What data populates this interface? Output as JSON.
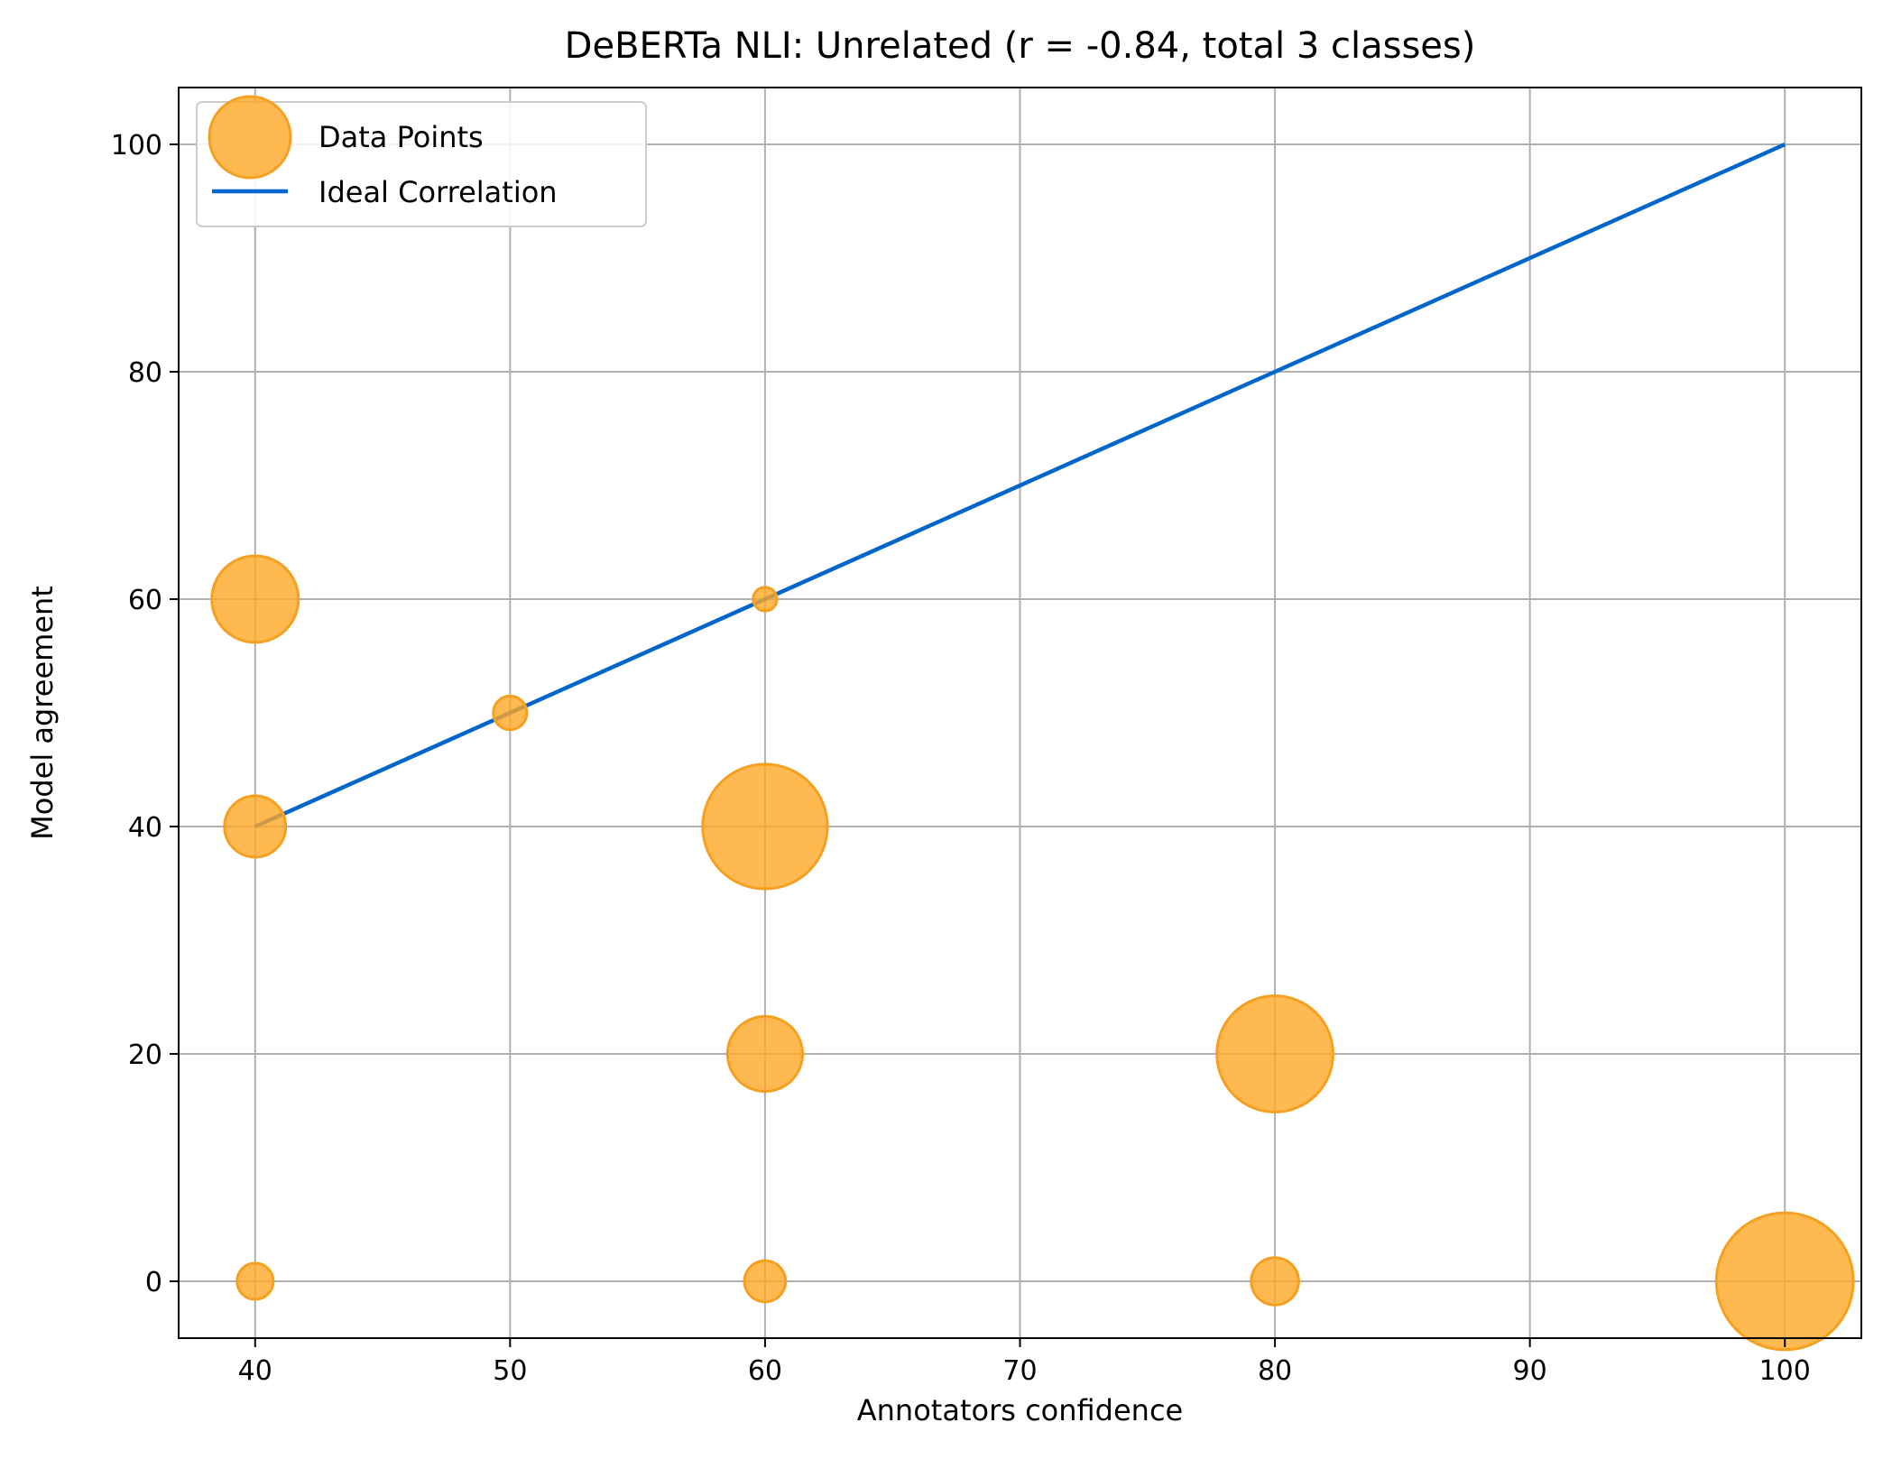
{
  "chart_data": {
    "type": "scatter",
    "title": "DeBERTa NLI: Unrelated (r = -0.84, total 3 classes)",
    "xlabel": "Annotators confidence",
    "ylabel": "Model agreement",
    "xlim": [
      37,
      103
    ],
    "ylim": [
      -5,
      105
    ],
    "xticks": [
      40,
      50,
      60,
      70,
      80,
      90,
      100
    ],
    "yticks": [
      0,
      20,
      40,
      60,
      80,
      100
    ],
    "xtick_labels": [
      "40",
      "50",
      "60",
      "70",
      "80",
      "90",
      "100"
    ],
    "ytick_labels": [
      "0",
      "20",
      "40",
      "60",
      "80",
      "100"
    ],
    "grid": true,
    "legend_position": "top-left",
    "colors": {
      "points": "#ffa726",
      "points_edge": "#f5a020",
      "line": "#0066cc",
      "grid": "#b0b0b0"
    },
    "series": [
      {
        "name": "Data Points",
        "kind": "scatter",
        "points": [
          {
            "x": 40,
            "y": 60,
            "size": 4
          },
          {
            "x": 40,
            "y": 40,
            "size": 2
          },
          {
            "x": 40,
            "y": 0,
            "size": 0.7
          },
          {
            "x": 50,
            "y": 50,
            "size": 0.6
          },
          {
            "x": 60,
            "y": 60,
            "size": 0.3
          },
          {
            "x": 60,
            "y": 40,
            "size": 8.3
          },
          {
            "x": 60,
            "y": 20,
            "size": 3
          },
          {
            "x": 60,
            "y": 0,
            "size": 0.9
          },
          {
            "x": 80,
            "y": 20,
            "size": 7.2
          },
          {
            "x": 80,
            "y": 0,
            "size": 1.2
          },
          {
            "x": 100,
            "y": 0,
            "size": 10
          }
        ]
      },
      {
        "name": "Ideal Correlation",
        "kind": "line",
        "x": [
          40,
          100
        ],
        "y": [
          40,
          100
        ]
      }
    ]
  }
}
